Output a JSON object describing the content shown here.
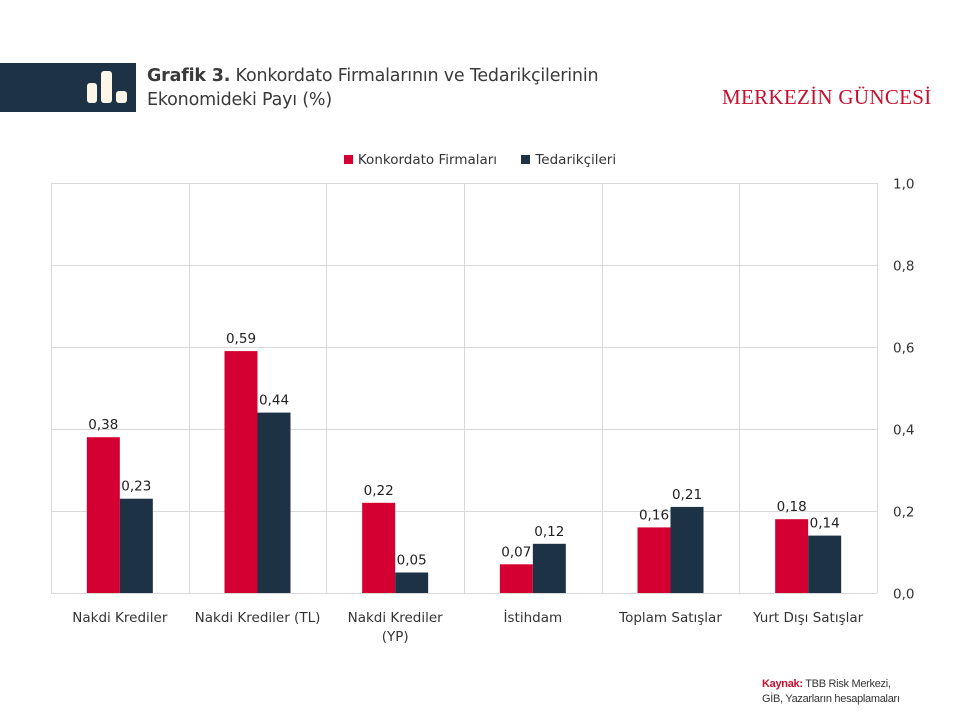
{
  "header": {
    "title_bold": "Grafik 3.",
    "title_line1": " Konkordato Firmalarının ve Tedarikçilerinin",
    "title_line2": "Ekonomideki Payı (%)",
    "brand": "MERKEZİN GÜNCESİ",
    "icon": "bar-chart-icon"
  },
  "source": {
    "label": "Kaynak:",
    "line1": " TBB Risk Merkezi,",
    "line2": "GİB, Yazarların hesaplamaları"
  },
  "chart_data": {
    "type": "bar",
    "title": "Konkordato Firmalarının ve Tedarikçilerinin Ekonomideki Payı (%)",
    "xlabel": "",
    "ylabel": "",
    "categories": [
      [
        "Nakdi Krediler"
      ],
      [
        "Nakdi Krediler (TL)"
      ],
      [
        "Nakdi Krediler",
        "(YP)"
      ],
      [
        "İstihdam"
      ],
      [
        "Toplam Satışlar"
      ],
      [
        "Yurt Dışı Satışlar"
      ]
    ],
    "series": [
      {
        "name": "Konkordato Firmaları",
        "color": "#d50032",
        "values": [
          0.38,
          0.59,
          0.22,
          0.07,
          0.16,
          0.18
        ],
        "labels": [
          "0,38",
          "0,59",
          "0,22",
          "0,07",
          "0,16",
          "0,18"
        ]
      },
      {
        "name": "Tedarikçileri",
        "color": "#1e3246",
        "values": [
          0.23,
          0.44,
          0.05,
          0.12,
          0.21,
          0.14
        ],
        "labels": [
          "0,23",
          "0,44",
          "0,05",
          "0,12",
          "0,21",
          "0,14"
        ]
      }
    ],
    "ylim": [
      0,
      1.0
    ],
    "yticks": [
      0,
      0.2,
      0.4,
      0.6,
      0.8,
      1.0
    ],
    "ytick_labels": [
      "0,0",
      "0,2",
      "0,4",
      "0,6",
      "0,8",
      "1,0"
    ],
    "y_axis_side": "right",
    "grid": true,
    "legend_position": "top-center"
  }
}
